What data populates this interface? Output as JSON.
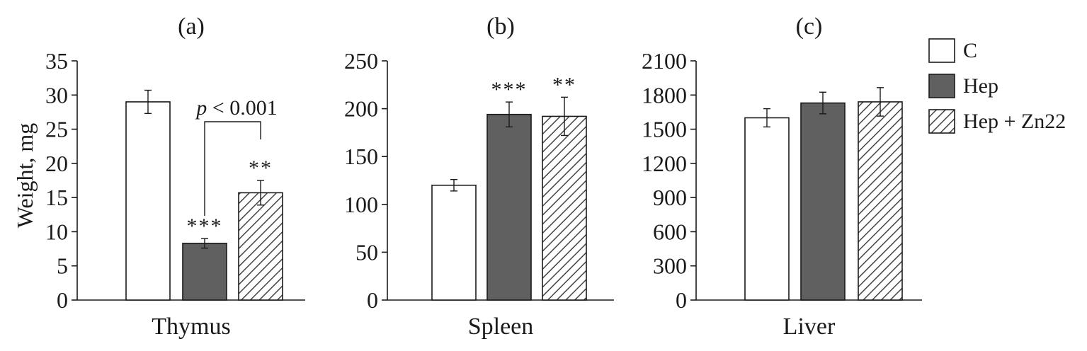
{
  "figure": {
    "ylabel": "Weight, mg",
    "colors": {
      "control": "#ffffff",
      "hep": "#606060",
      "hatch": "#444444",
      "stroke": "#1a1a1a"
    },
    "legend": {
      "placement": "top-right",
      "items": [
        {
          "label": "C",
          "style": "white"
        },
        {
          "label": "Hep",
          "style": "dark"
        },
        {
          "label": "Hep + Zn22",
          "style": "hatched"
        }
      ]
    }
  },
  "chart_data": [
    {
      "type": "bar",
      "panel_label": "(a)",
      "xlabel": "Thymus",
      "categories": [
        "C",
        "Hep",
        "Hep + Zn22"
      ],
      "values": [
        29.0,
        8.3,
        15.7
      ],
      "errors": [
        1.7,
        0.7,
        1.8
      ],
      "significance": [
        "",
        "***",
        "**"
      ],
      "ylim": [
        0,
        35
      ],
      "yticks": [
        0,
        5,
        10,
        15,
        20,
        25,
        30,
        35
      ],
      "annotation": {
        "italic": "p",
        "text": " < 0.001",
        "between": [
          1,
          2
        ]
      }
    },
    {
      "type": "bar",
      "panel_label": "(b)",
      "xlabel": "Spleen",
      "categories": [
        "C",
        "Hep",
        "Hep + Zn22"
      ],
      "values": [
        120,
        194,
        192
      ],
      "errors": [
        6,
        13,
        20
      ],
      "significance": [
        "",
        "***",
        "**"
      ],
      "ylim": [
        0,
        250
      ],
      "yticks": [
        0,
        50,
        100,
        150,
        200,
        250
      ]
    },
    {
      "type": "bar",
      "panel_label": "(c)",
      "xlabel": "Liver",
      "categories": [
        "C",
        "Hep",
        "Hep + Zn22"
      ],
      "values": [
        1600,
        1730,
        1740
      ],
      "errors": [
        80,
        95,
        125
      ],
      "significance": [
        "",
        "",
        ""
      ],
      "ylim": [
        0,
        2100
      ],
      "yticks": [
        0,
        300,
        600,
        900,
        1200,
        1500,
        1800,
        2100
      ]
    }
  ]
}
